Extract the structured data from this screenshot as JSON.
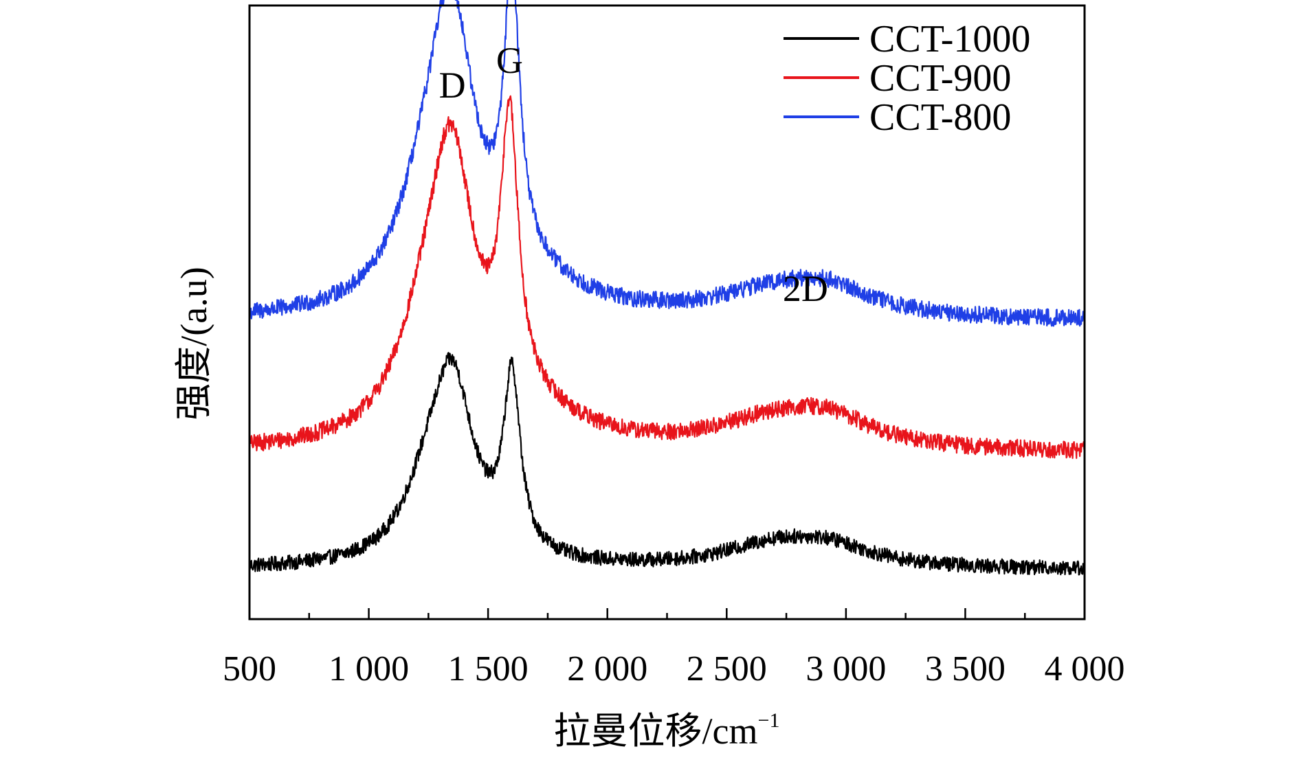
{
  "chart_data": {
    "type": "line",
    "title": "",
    "xlabel": "拉曼位移/cm",
    "xlabel_superscript": "−1",
    "ylabel": "强度/(a.u)",
    "xlim": [
      500,
      4000
    ],
    "x_ticks": [
      500,
      1000,
      1500,
      2000,
      2500,
      3000,
      3500,
      4000
    ],
    "x_tick_labels": [
      "500",
      "1 000",
      "1 500",
      "2 000",
      "2 500",
      "3 000",
      "3 500",
      "4 000"
    ],
    "x_minor_step": 250,
    "y_ticks_shown": false,
    "grid": false,
    "legend_position": "top-right",
    "annotations": [
      {
        "text": "D",
        "x": 1350
      },
      {
        "text": "G",
        "x": 1590
      },
      {
        "text": "2D",
        "x": 2830
      }
    ],
    "series": [
      {
        "name": "CCT-1000",
        "color": "#000000",
        "baseline": 0.08,
        "noise": 0.012,
        "peaks": [
          {
            "x": 1350,
            "height": 0.29,
            "width": 110
          },
          {
            "x": 1240,
            "height": 0.08,
            "width": 120
          },
          {
            "x": 1600,
            "height": 0.28,
            "width": 42
          },
          {
            "x": 2700,
            "height": 0.035,
            "width": 260
          },
          {
            "x": 2930,
            "height": 0.03,
            "width": 220
          }
        ]
      },
      {
        "name": "CCT-900",
        "color": "#e8141b",
        "baseline": 0.27,
        "noise": 0.014,
        "peaks": [
          {
            "x": 1345,
            "height": 0.45,
            "width": 120
          },
          {
            "x": 1220,
            "height": 0.1,
            "width": 140
          },
          {
            "x": 1590,
            "height": 0.44,
            "width": 45
          },
          {
            "x": 1700,
            "height": 0.04,
            "width": 250
          },
          {
            "x": 2700,
            "height": 0.045,
            "width": 300
          },
          {
            "x": 2930,
            "height": 0.04,
            "width": 220
          }
        ]
      },
      {
        "name": "CCT-800",
        "color": "#1f3fe6",
        "baseline": 0.485,
        "noise": 0.014,
        "peaks": [
          {
            "x": 1345,
            "height": 0.47,
            "width": 120
          },
          {
            "x": 1220,
            "height": 0.1,
            "width": 140
          },
          {
            "x": 1600,
            "height": 0.46,
            "width": 40
          },
          {
            "x": 1700,
            "height": 0.04,
            "width": 250
          },
          {
            "x": 2700,
            "height": 0.04,
            "width": 300
          },
          {
            "x": 2930,
            "height": 0.038,
            "width": 220
          }
        ]
      }
    ]
  }
}
